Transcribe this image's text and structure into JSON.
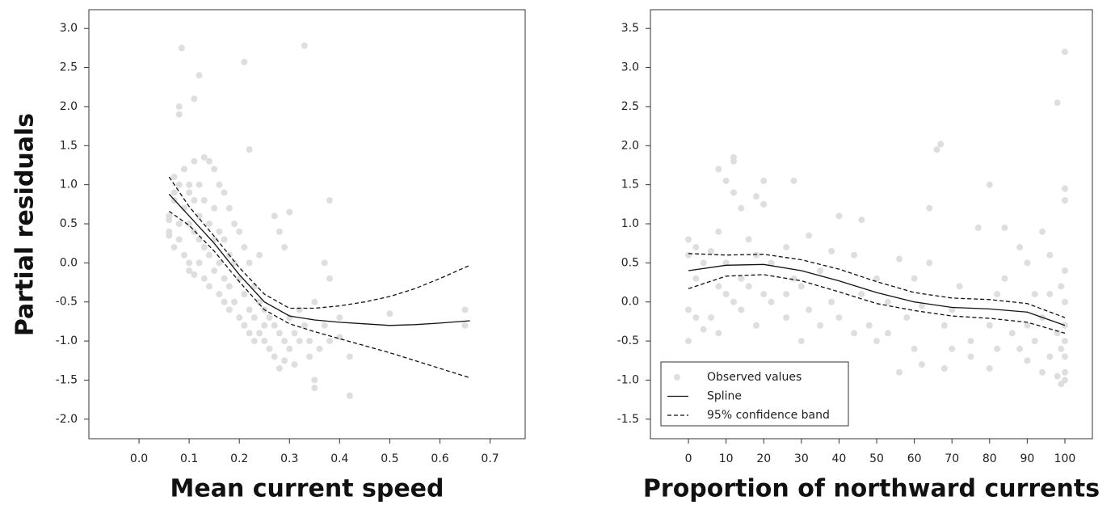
{
  "chart_data": [
    {
      "type": "scatter",
      "ylabel": "Partial residuals",
      "xlabel": "Mean current speed",
      "xlim": [
        -0.1,
        0.77
      ],
      "ylim": [
        -2.25,
        3.24
      ],
      "xticks": [
        {
          "value": 0,
          "label": "0.0"
        },
        0.1,
        0.2,
        0.3,
        0.4,
        0.5,
        0.6,
        0.7
      ],
      "yticks": [
        {
          "value": -2,
          "label": "-2.0"
        },
        -1.5,
        {
          "value": -1,
          "label": "-1.0"
        },
        -0.5,
        {
          "value": 0,
          "label": "0.0"
        },
        0.5,
        {
          "value": 1,
          "label": "1.0"
        },
        1.5,
        {
          "value": 2,
          "label": "2.0"
        },
        2.5,
        {
          "value": 3,
          "label": "3.0"
        }
      ],
      "points": {
        "color": "#dedede",
        "x": [
          0.06,
          0.06,
          0.06,
          0.06,
          0.07,
          0.07,
          0.07,
          0.07,
          0.08,
          0.08,
          0.08,
          0.08,
          0.08,
          0.085,
          0.09,
          0.09,
          0.09,
          0.1,
          0.1,
          0.1,
          0.1,
          0.1,
          0.11,
          0.11,
          0.11,
          0.11,
          0.11,
          0.12,
          0.12,
          0.12,
          0.12,
          0.12,
          0.13,
          0.13,
          0.13,
          0.13,
          0.14,
          0.14,
          0.14,
          0.14,
          0.15,
          0.15,
          0.15,
          0.15,
          0.16,
          0.16,
          0.16,
          0.16,
          0.17,
          0.17,
          0.17,
          0.17,
          0.18,
          0.18,
          0.18,
          0.18,
          0.19,
          0.19,
          0.19,
          0.2,
          0.2,
          0.2,
          0.21,
          0.21,
          0.21,
          0.21,
          0.22,
          0.22,
          0.22,
          0.22,
          0.23,
          0.23,
          0.23,
          0.24,
          0.24,
          0.24,
          0.25,
          0.25,
          0.25,
          0.26,
          0.26,
          0.27,
          0.27,
          0.27,
          0.28,
          0.28,
          0.28,
          0.29,
          0.29,
          0.29,
          0.3,
          0.3,
          0.3,
          0.31,
          0.31,
          0.32,
          0.32,
          0.33,
          0.33,
          0.34,
          0.34,
          0.35,
          0.35,
          0.35,
          0.36,
          0.37,
          0.37,
          0.38,
          0.38,
          0.38,
          0.4,
          0.4,
          0.42,
          0.42,
          0.5,
          0.65,
          0.65
        ],
        "y": [
          0.4,
          0.6,
          0.35,
          0.55,
          0.8,
          0.9,
          0.2,
          1.1,
          0.5,
          1.0,
          0.3,
          1.9,
          2.0,
          2.75,
          0.7,
          0.1,
          1.2,
          0.9,
          0.5,
          0.0,
          1.0,
          -0.1,
          2.1,
          1.3,
          0.8,
          0.4,
          -0.15,
          2.4,
          1.0,
          0.6,
          0.3,
          0.0,
          1.35,
          0.8,
          0.2,
          -0.2,
          1.3,
          0.5,
          0.1,
          -0.3,
          1.2,
          0.7,
          0.3,
          -0.1,
          1.0,
          0.4,
          0.0,
          -0.4,
          0.9,
          0.3,
          -0.2,
          -0.5,
          0.7,
          0.1,
          -0.3,
          -0.6,
          0.5,
          0.0,
          -0.5,
          0.4,
          -0.2,
          -0.7,
          2.57,
          0.2,
          -0.4,
          -0.8,
          1.45,
          0.0,
          -0.6,
          -0.9,
          -0.3,
          -0.7,
          -1.0,
          0.1,
          -0.5,
          -0.9,
          -0.6,
          -1.0,
          -0.8,
          -0.7,
          -1.1,
          0.6,
          -0.8,
          -1.2,
          0.4,
          -0.9,
          -1.35,
          0.2,
          -1.0,
          -1.25,
          0.65,
          -0.7,
          -1.1,
          -0.9,
          -1.3,
          -0.6,
          -1.0,
          2.78,
          -0.8,
          -1.0,
          -1.2,
          -1.5,
          -0.5,
          -1.6,
          -1.1,
          0.0,
          -0.8,
          0.8,
          -0.2,
          -1.0,
          -0.7,
          -0.95,
          -1.2,
          -1.7,
          -0.65,
          -0.6,
          -0.8
        ]
      },
      "spline": {
        "x": [
          0.06,
          0.1,
          0.15,
          0.2,
          0.25,
          0.3,
          0.35,
          0.4,
          0.45,
          0.5,
          0.55,
          0.6,
          0.66
        ],
        "y": [
          0.88,
          0.6,
          0.25,
          -0.15,
          -0.5,
          -0.68,
          -0.73,
          -0.76,
          -0.78,
          -0.8,
          -0.79,
          -0.77,
          -0.74
        ]
      },
      "band": {
        "x": [
          0.06,
          0.1,
          0.15,
          0.2,
          0.25,
          0.3,
          0.35,
          0.4,
          0.45,
          0.5,
          0.55,
          0.6,
          0.66
        ],
        "upper": [
          1.1,
          0.72,
          0.34,
          -0.06,
          -0.4,
          -0.58,
          -0.58,
          -0.55,
          -0.5,
          -0.43,
          -0.33,
          -0.2,
          -0.03
        ],
        "lower": [
          0.66,
          0.48,
          0.15,
          -0.24,
          -0.6,
          -0.78,
          -0.88,
          -0.97,
          -1.06,
          -1.15,
          -1.25,
          -1.35,
          -1.47
        ]
      }
    },
    {
      "type": "scatter",
      "xlabel": "Proportion of northward currents",
      "xlim": [
        -10.1,
        107.3
      ],
      "ylim": [
        -1.75,
        3.74
      ],
      "xticks": [
        0,
        10,
        20,
        30,
        40,
        50,
        60,
        70,
        80,
        90,
        100
      ],
      "yticks": [
        -1.5,
        {
          "value": -1,
          "label": "-1.0"
        },
        -0.5,
        {
          "value": 0,
          "label": "0.0"
        },
        0.5,
        {
          "value": 1,
          "label": "1.0"
        },
        1.5,
        {
          "value": 2,
          "label": "2.0"
        },
        2.5,
        {
          "value": 3,
          "label": "3.0"
        },
        3.5
      ],
      "legend": {
        "loc": "lower left",
        "entries": [
          "Observed values",
          "Spline",
          "95% confidence band"
        ]
      },
      "points": {
        "color": "#dedede",
        "x": [
          0,
          0,
          0,
          0,
          2,
          2,
          2,
          4,
          4,
          6,
          6,
          8,
          8,
          8,
          8,
          10,
          10,
          10,
          12,
          12,
          12,
          12,
          14,
          14,
          14,
          16,
          16,
          18,
          18,
          18,
          20,
          20,
          20,
          22,
          22,
          26,
          26,
          26,
          28,
          28,
          30,
          30,
          32,
          32,
          35,
          35,
          38,
          38,
          40,
          40,
          44,
          44,
          46,
          46,
          48,
          50,
          50,
          53,
          53,
          56,
          56,
          58,
          60,
          60,
          62,
          62,
          64,
          64,
          66,
          67,
          68,
          68,
          70,
          70,
          72,
          75,
          75,
          77,
          80,
          80,
          80,
          82,
          82,
          84,
          84,
          86,
          88,
          88,
          90,
          90,
          90,
          92,
          92,
          94,
          94,
          94,
          96,
          96,
          96,
          98,
          98,
          98,
          99,
          99,
          99,
          100,
          100,
          100,
          100,
          100,
          100,
          100,
          100,
          100,
          100
        ],
        "y": [
          0.8,
          0.6,
          -0.1,
          -0.5,
          0.3,
          0.7,
          -0.2,
          0.5,
          -0.35,
          0.65,
          -0.2,
          1.7,
          0.9,
          -0.4,
          0.2,
          1.55,
          0.1,
          0.5,
          1.8,
          1.85,
          1.4,
          0.0,
          1.2,
          0.3,
          -0.1,
          0.8,
          0.2,
          1.35,
          0.6,
          -0.3,
          1.55,
          1.25,
          0.1,
          0.5,
          0.0,
          0.7,
          0.1,
          -0.2,
          1.55,
          0.3,
          0.2,
          -0.5,
          0.85,
          -0.1,
          0.4,
          -0.3,
          0.65,
          0.0,
          1.1,
          -0.2,
          0.6,
          -0.4,
          1.05,
          0.1,
          -0.3,
          0.3,
          -0.5,
          0.0,
          -0.4,
          0.55,
          -0.9,
          -0.2,
          0.3,
          -0.6,
          -0.05,
          -0.8,
          1.2,
          0.5,
          1.95,
          2.02,
          -0.3,
          -0.85,
          -0.1,
          -0.6,
          0.2,
          -0.5,
          -0.7,
          0.95,
          1.5,
          -0.3,
          -0.85,
          0.1,
          -0.6,
          0.95,
          0.3,
          -0.4,
          0.7,
          -0.6,
          0.5,
          -0.3,
          -0.75,
          0.1,
          -0.5,
          0.9,
          -0.2,
          -0.9,
          0.6,
          -0.7,
          0.1,
          2.55,
          -0.4,
          -0.95,
          0.2,
          -0.6,
          -1.05,
          3.2,
          1.45,
          1.3,
          0.4,
          0.0,
          -0.3,
          -0.5,
          -0.7,
          -0.9,
          -1.0
        ]
      },
      "spline": {
        "x": [
          0,
          10,
          20,
          30,
          40,
          50,
          60,
          70,
          80,
          90,
          100
        ],
        "y": [
          0.4,
          0.47,
          0.48,
          0.4,
          0.27,
          0.12,
          0.0,
          -0.07,
          -0.09,
          -0.13,
          -0.3
        ]
      },
      "band": {
        "x": [
          0,
          10,
          20,
          30,
          40,
          50,
          60,
          70,
          80,
          90,
          100
        ],
        "upper": [
          0.62,
          0.6,
          0.61,
          0.54,
          0.42,
          0.26,
          0.12,
          0.05,
          0.03,
          -0.02,
          -0.2
        ],
        "lower": [
          0.17,
          0.33,
          0.35,
          0.27,
          0.13,
          -0.02,
          -0.11,
          -0.18,
          -0.21,
          -0.26,
          -0.4
        ]
      }
    }
  ]
}
